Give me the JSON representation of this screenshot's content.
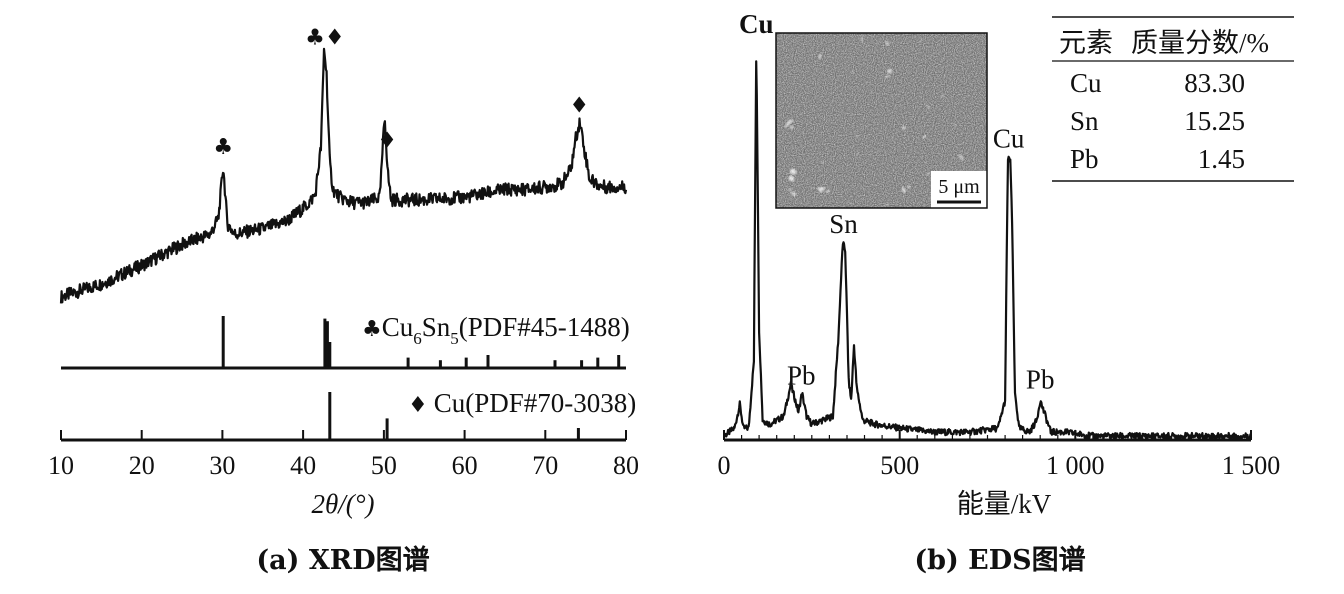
{
  "chart_data": [
    {
      "type": "line",
      "caption": "(a) XRD图谱",
      "xlabel": "2θ/(°)",
      "xlim": [
        10,
        80
      ],
      "xticks": [
        10,
        20,
        30,
        40,
        50,
        60,
        70,
        80
      ],
      "series": [
        {
          "x": [
            10,
            15,
            20,
            25,
            28.5,
            29.5,
            30.1,
            30.6,
            31.5,
            35,
            38,
            40.5,
            41.5,
            42.2,
            42.6,
            42.9,
            43.3,
            43.7,
            44.5,
            46,
            48,
            49.5,
            50.1,
            50.5,
            50.9,
            52,
            55,
            60,
            65,
            68,
            70,
            72,
            73.2,
            73.8,
            74.3,
            74.8,
            75.5,
            77,
            80
          ],
          "y": [
            0.05,
            0.1,
            0.17,
            0.25,
            0.29,
            0.35,
            0.55,
            0.33,
            0.29,
            0.31,
            0.34,
            0.4,
            0.44,
            0.62,
            1.0,
            0.9,
            0.56,
            0.46,
            0.43,
            0.41,
            0.41,
            0.43,
            0.74,
            0.52,
            0.42,
            0.42,
            0.42,
            0.43,
            0.46,
            0.46,
            0.47,
            0.48,
            0.54,
            0.66,
            0.72,
            0.62,
            0.5,
            0.47,
            0.47
          ]
        }
      ],
      "peaks": [
        {
          "x": 30.1,
          "marker": "♣"
        },
        {
          "x": 42.7,
          "marker": "♣♦"
        },
        {
          "x": 50.4,
          "marker": "♦"
        },
        {
          "x": 74.2,
          "marker": "♦"
        }
      ],
      "references": [
        {
          "marker": "♣",
          "label_main": "Cu",
          "sub1": "6",
          "mid": "Sn",
          "sub2": "5",
          "label_tail": "(PDF#45-1488)",
          "lines": [
            {
              "x": 30.1,
              "h": 1.0
            },
            {
              "x": 42.7,
              "h": 0.95
            },
            {
              "x": 43.0,
              "h": 0.9
            },
            {
              "x": 43.3,
              "h": 0.5
            },
            {
              "x": 53.0,
              "h": 0.2
            },
            {
              "x": 57.0,
              "h": 0.15
            },
            {
              "x": 60.2,
              "h": 0.2
            },
            {
              "x": 62.9,
              "h": 0.25
            },
            {
              "x": 71.2,
              "h": 0.15
            },
            {
              "x": 74.5,
              "h": 0.15
            },
            {
              "x": 76.5,
              "h": 0.2
            },
            {
              "x": 79.1,
              "h": 0.25
            }
          ]
        },
        {
          "marker": "♦",
          "label_main": "Cu(PDF#70-3038)",
          "lines": [
            {
              "x": 43.3,
              "h": 1.0
            },
            {
              "x": 50.4,
              "h": 0.45
            },
            {
              "x": 74.1,
              "h": 0.25
            }
          ]
        }
      ]
    },
    {
      "type": "line",
      "caption": "(b) EDS图谱",
      "xlabel": "能量/kV",
      "xlim": [
        0,
        1500
      ],
      "xticks": [
        0,
        500,
        1000,
        1500
      ],
      "xtick_labels": [
        "0",
        "500",
        "1 000",
        "1 500"
      ],
      "series": [
        {
          "x": [
            0,
            30,
            45,
            55,
            70,
            85,
            92,
            100,
            110,
            130,
            170,
            190,
            200,
            212,
            222,
            235,
            250,
            280,
            310,
            325,
            338,
            345,
            355,
            362,
            370,
            378,
            395,
            430,
            500,
            600,
            700,
            780,
            800,
            808,
            815,
            820,
            828,
            840,
            870,
            890,
            900,
            915,
            930,
            970,
            1050,
            1200,
            1350,
            1500
          ],
          "y": [
            0.01,
            0.03,
            0.09,
            0.03,
            0.03,
            0.2,
            1.0,
            0.28,
            0.05,
            0.04,
            0.06,
            0.14,
            0.11,
            0.07,
            0.12,
            0.06,
            0.04,
            0.05,
            0.06,
            0.25,
            0.5,
            0.48,
            0.15,
            0.1,
            0.24,
            0.13,
            0.05,
            0.04,
            0.03,
            0.02,
            0.02,
            0.03,
            0.1,
            0.71,
            0.71,
            0.55,
            0.12,
            0.03,
            0.02,
            0.05,
            0.1,
            0.06,
            0.02,
            0.02,
            0.01,
            0.01,
            0.01,
            0.01
          ]
        }
      ],
      "peak_labels": [
        {
          "x": 92,
          "text": "Cu"
        },
        {
          "x": 340,
          "text": "Sn"
        },
        {
          "x": 810,
          "text": "Cu"
        },
        {
          "x": 220,
          "text": "Pb"
        },
        {
          "x": 900,
          "text": "Pb"
        }
      ],
      "inset": {
        "scale_bar": "5 μm"
      },
      "table": {
        "headers": [
          "元素",
          "质量分数/%"
        ],
        "rows": [
          [
            "Cu",
            "83.30"
          ],
          [
            "Sn",
            "15.25"
          ],
          [
            "Pb",
            "1.45"
          ]
        ]
      }
    }
  ]
}
